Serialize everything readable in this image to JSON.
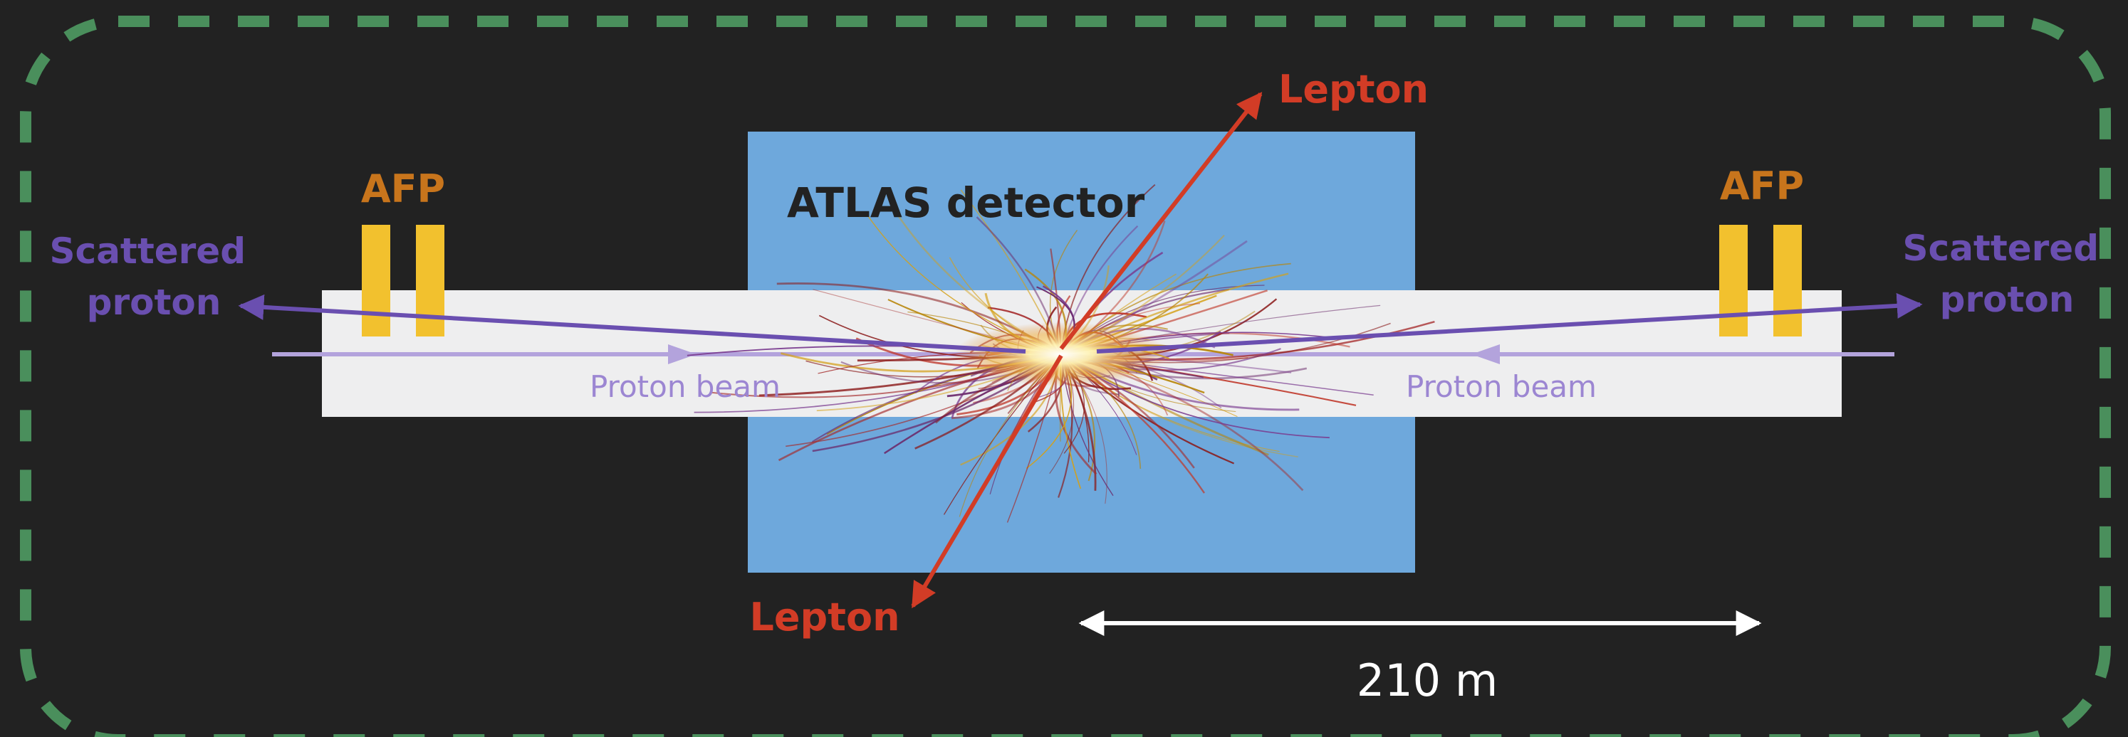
{
  "diagram": {
    "detector_label": "ATLAS detector",
    "afp_left_label": "AFP",
    "afp_right_label": "AFP",
    "scattered_left": [
      "Scattered",
      "proton"
    ],
    "scattered_right": [
      "Scattered",
      "proton"
    ],
    "beam_left_label": "Proton beam",
    "beam_right_label": "Proton beam",
    "lepton_top_label": "Lepton",
    "lepton_bottom_label": "Lepton",
    "scale_label": "210 m"
  },
  "colors": {
    "background": "#222222",
    "border_dash": "#4a8f5c",
    "detector": "#6ea8dc",
    "beampipe": "#eeeeef",
    "afp": "#f2c12e",
    "afp_text": "#c8751c",
    "proton": "#6a4fb0",
    "beam": "#b3a3dc",
    "lepton": "#d23c26",
    "scale": "#ffffff"
  }
}
